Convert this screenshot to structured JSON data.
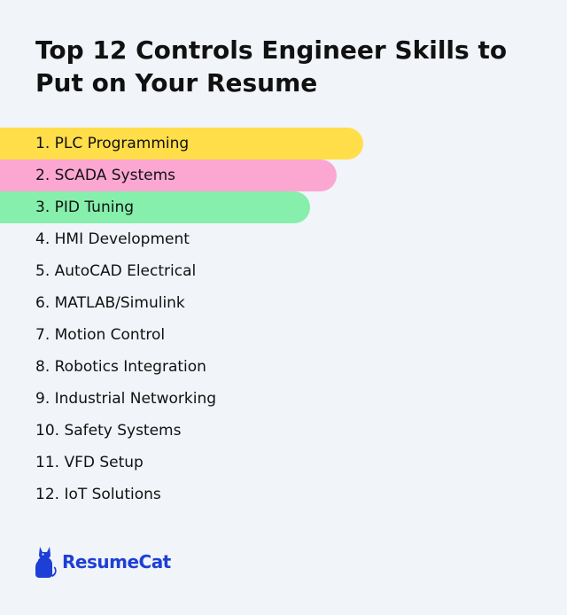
{
  "title": "Top 12 Controls Engineer Skills to Put on Your Resume",
  "skills": [
    {
      "label": "1. PLC Programming",
      "highlight": "#ffde4a"
    },
    {
      "label": "2. SCADA Systems",
      "highlight": "#fca7d2"
    },
    {
      "label": "3. PID Tuning",
      "highlight": "#86efac"
    },
    {
      "label": "4. HMI Development",
      "highlight": ""
    },
    {
      "label": "5. AutoCAD Electrical",
      "highlight": ""
    },
    {
      "label": "6. MATLAB/Simulink",
      "highlight": ""
    },
    {
      "label": "7. Motion Control",
      "highlight": ""
    },
    {
      "label": "8. Robotics Integration",
      "highlight": ""
    },
    {
      "label": "9. Industrial Networking",
      "highlight": ""
    },
    {
      "label": "10. Safety Systems",
      "highlight": ""
    },
    {
      "label": "11. VFD Setup",
      "highlight": ""
    },
    {
      "label": "12. IoT Solutions",
      "highlight": ""
    }
  ],
  "brand": {
    "name": "ResumeCat",
    "icon": "cat-icon",
    "color": "#1d3fd6"
  }
}
